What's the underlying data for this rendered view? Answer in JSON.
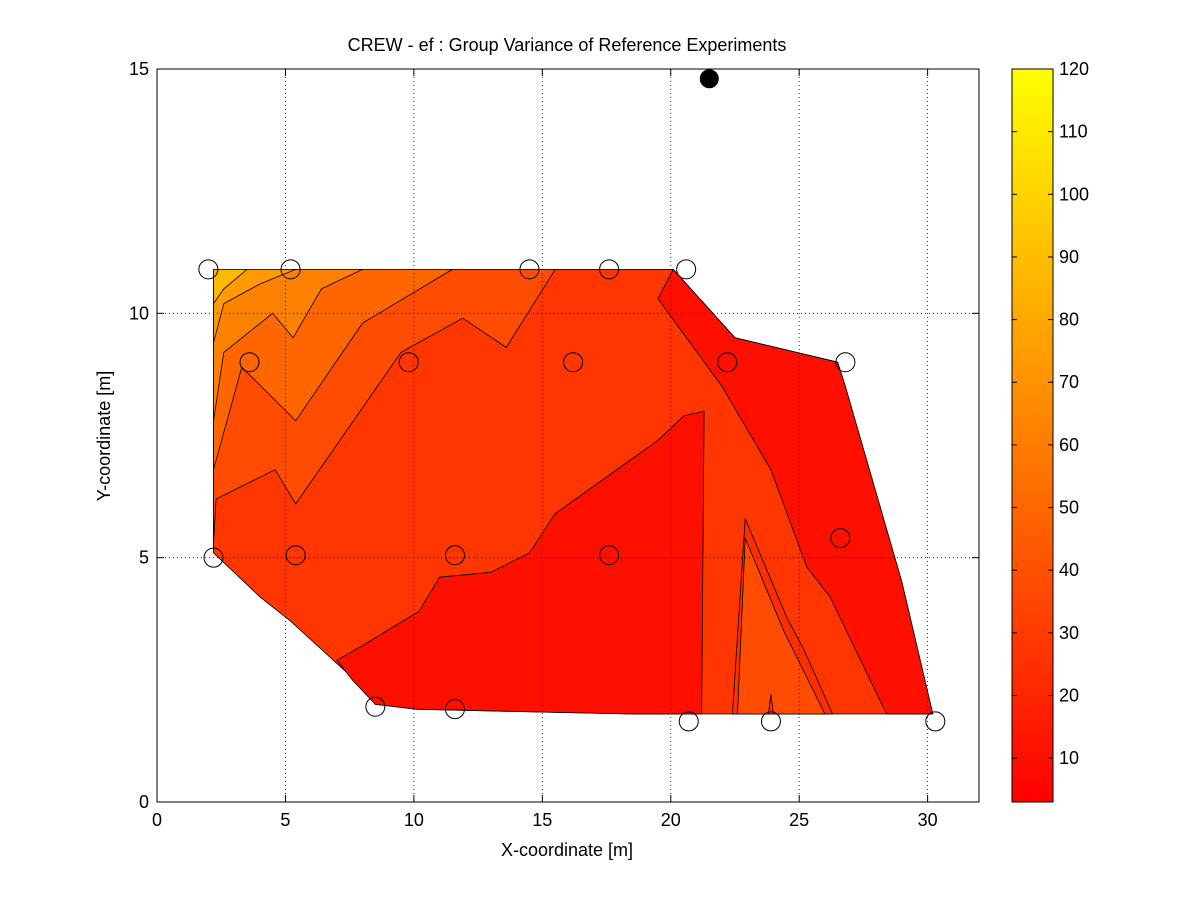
{
  "chart_data": {
    "type": "contour",
    "title": "CREW - ef : Group Variance of Reference Experiments",
    "xlabel": "X-coordinate [m]",
    "ylabel": "Y-coordinate [m]",
    "xlim": [
      0,
      32
    ],
    "ylim": [
      0,
      15
    ],
    "xticks": [
      0,
      5,
      10,
      15,
      20,
      25,
      30
    ],
    "yticks": [
      0,
      5,
      10,
      15
    ],
    "grid": true,
    "colorbar": {
      "colormap": "autumn",
      "range": [
        3,
        120
      ],
      "ticks": [
        10,
        20,
        30,
        40,
        50,
        60,
        70,
        80,
        90,
        100,
        110,
        120
      ]
    },
    "colors": {
      "low": "#ff0000",
      "high": "#ffff00",
      "grid": "#000000",
      "background": "#ffffff"
    },
    "measurement_points": [
      {
        "x": 2.0,
        "y": 10.9
      },
      {
        "x": 5.2,
        "y": 10.9
      },
      {
        "x": 14.5,
        "y": 10.9
      },
      {
        "x": 17.6,
        "y": 10.9
      },
      {
        "x": 20.6,
        "y": 10.9
      },
      {
        "x": 3.6,
        "y": 9.0
      },
      {
        "x": 9.8,
        "y": 9.0
      },
      {
        "x": 16.2,
        "y": 9.0
      },
      {
        "x": 22.2,
        "y": 9.0
      },
      {
        "x": 26.8,
        "y": 9.0
      },
      {
        "x": 2.2,
        "y": 5.0
      },
      {
        "x": 5.4,
        "y": 5.05
      },
      {
        "x": 11.6,
        "y": 5.05
      },
      {
        "x": 17.6,
        "y": 5.05
      },
      {
        "x": 26.6,
        "y": 5.4
      },
      {
        "x": 8.5,
        "y": 1.95
      },
      {
        "x": 11.6,
        "y": 1.9
      },
      {
        "x": 20.7,
        "y": 1.65
      },
      {
        "x": 23.9,
        "y": 1.65
      },
      {
        "x": 30.3,
        "y": 1.65
      }
    ],
    "reference_point": {
      "x": 21.5,
      "y": 14.8
    },
    "contour_regions": [
      {
        "level": 28,
        "polygon": [
          [
            2.2,
            10.9
          ],
          [
            20.1,
            10.9
          ],
          [
            22.5,
            9.5
          ],
          [
            26.5,
            9.0
          ],
          [
            26.8,
            8.5
          ],
          [
            29.0,
            4.5
          ],
          [
            30.2,
            1.8
          ],
          [
            18.5,
            1.8
          ],
          [
            14.2,
            1.85
          ],
          [
            10.1,
            1.9
          ],
          [
            8.5,
            2.0
          ],
          [
            7.7,
            2.5
          ],
          [
            5.2,
            3.7
          ],
          [
            4.0,
            4.2
          ],
          [
            2.2,
            5.1
          ],
          [
            2.2,
            10.9
          ]
        ]
      },
      {
        "level": 38,
        "polygon": [
          [
            2.2,
            10.9
          ],
          [
            2.2,
            5.1
          ],
          [
            2.2,
            5.3
          ],
          [
            2.3,
            6.2
          ],
          [
            4.6,
            6.8
          ],
          [
            5.4,
            6.1
          ],
          [
            9.5,
            9.2
          ],
          [
            11.9,
            9.9
          ],
          [
            13.6,
            9.3
          ],
          [
            15.5,
            10.9
          ]
        ]
      },
      {
        "level": 50,
        "polygon": [
          [
            2.2,
            10.9
          ],
          [
            2.2,
            6.8
          ],
          [
            3.3,
            8.9
          ],
          [
            5.4,
            7.8
          ],
          [
            8.0,
            9.8
          ],
          [
            11.5,
            10.9
          ]
        ]
      },
      {
        "level": 62,
        "polygon": [
          [
            2.2,
            10.9
          ],
          [
            2.2,
            7.8
          ],
          [
            2.6,
            9.2
          ],
          [
            4.5,
            10.0
          ],
          [
            5.3,
            9.5
          ],
          [
            6.4,
            10.5
          ],
          [
            8.0,
            10.9
          ]
        ]
      },
      {
        "level": 74,
        "polygon": [
          [
            2.2,
            10.9
          ],
          [
            2.2,
            9.4
          ],
          [
            2.6,
            10.2
          ],
          [
            4.0,
            10.6
          ],
          [
            5.4,
            10.9
          ]
        ]
      },
      {
        "level": 88,
        "polygon": [
          [
            2.2,
            10.9
          ],
          [
            2.2,
            10.2
          ],
          [
            2.6,
            10.5
          ],
          [
            3.5,
            10.9
          ]
        ]
      },
      {
        "level": 10,
        "polygon": [
          [
            7.6,
            2.5
          ],
          [
            8.5,
            2.0
          ],
          [
            10.1,
            1.9
          ],
          [
            14.2,
            1.85
          ],
          [
            18.5,
            1.8
          ],
          [
            21.2,
            1.8
          ],
          [
            21.3,
            8.0
          ],
          [
            20.5,
            7.9
          ],
          [
            19.5,
            7.4
          ],
          [
            15.5,
            5.9
          ],
          [
            14.5,
            5.1
          ],
          [
            13.0,
            4.7
          ],
          [
            11.0,
            4.6
          ],
          [
            10.2,
            3.9
          ],
          [
            8.0,
            3.2
          ],
          [
            7.0,
            2.9
          ]
        ]
      },
      {
        "level": 10,
        "polygon": [
          [
            20.1,
            10.9
          ],
          [
            22.5,
            9.5
          ],
          [
            26.5,
            9.0
          ],
          [
            26.8,
            8.5
          ],
          [
            29.0,
            4.5
          ],
          [
            30.2,
            1.8
          ],
          [
            28.4,
            1.8
          ],
          [
            26.2,
            4.2
          ],
          [
            25.3,
            4.8
          ],
          [
            23.9,
            6.8
          ],
          [
            22.0,
            8.5
          ],
          [
            19.5,
            10.3
          ]
        ]
      },
      {
        "level": 24,
        "polygon": [
          [
            22.4,
            1.8
          ],
          [
            22.9,
            5.8
          ],
          [
            24.5,
            3.8
          ],
          [
            25.2,
            3.1
          ],
          [
            26.3,
            1.8
          ]
        ]
      },
      {
        "level": 38,
        "polygon": [
          [
            22.6,
            1.8
          ],
          [
            22.9,
            5.4
          ],
          [
            24.4,
            3.5
          ],
          [
            26.0,
            1.8
          ],
          [
            24.0,
            1.8
          ],
          [
            23.9,
            2.2
          ],
          [
            23.8,
            1.8
          ]
        ]
      }
    ]
  }
}
